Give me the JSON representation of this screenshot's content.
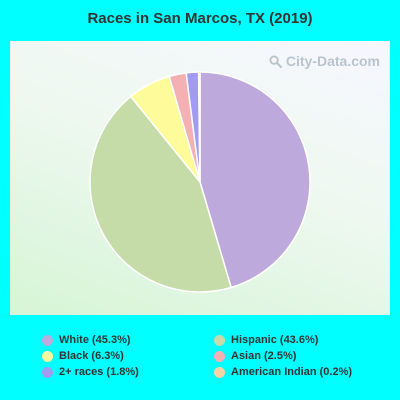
{
  "chart_data": {
    "type": "pie",
    "title": "Races in San Marcos, TX (2019)",
    "watermark": "City-Data.com",
    "slices": [
      {
        "label": "White (45.3%)",
        "value": 45.3,
        "color": "#bea9dc"
      },
      {
        "label": "Hispanic (43.6%)",
        "value": 43.6,
        "color": "#c5dca8"
      },
      {
        "label": "Black (6.3%)",
        "value": 6.3,
        "color": "#fdfb9a"
      },
      {
        "label": "Asian (2.5%)",
        "value": 2.5,
        "color": "#f5b0b4"
      },
      {
        "label": "2+ races (1.8%)",
        "value": 1.8,
        "color": "#a39bf0"
      },
      {
        "label": "American Indian (0.2%)",
        "value": 0.2,
        "color": "#f7d3a6"
      }
    ],
    "start_angle_deg": 0,
    "direction": "clockwise",
    "legend_placement": "bottom"
  },
  "colors": {
    "background": "#00ffff",
    "title": "#333333"
  }
}
